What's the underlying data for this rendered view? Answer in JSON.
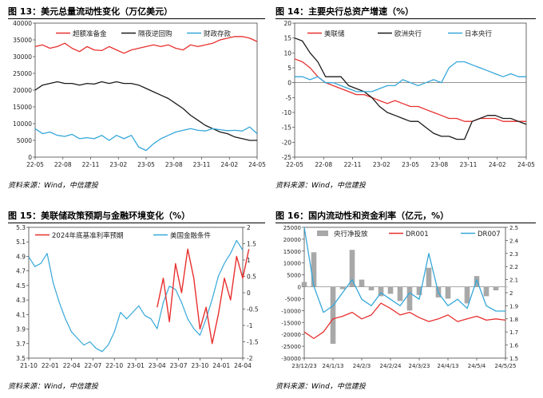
{
  "colors": {
    "red": "#e8302e",
    "black": "#1a1a1a",
    "blue": "#35a7d9",
    "gray": "#a8a8a8"
  },
  "panels": {
    "p13": {
      "title": "图 13：美元总量流动性变化（万亿美元）",
      "source": "资料来源：Wind，中信建投"
    },
    "p14": {
      "title": "图 14：主要央行总资产增速（%）",
      "source": "资料来源：Wind，中信建投"
    },
    "p15": {
      "title": "图 15：美联储政策预期与金融环境变化（%）",
      "source": "资料来源：Wind，中信建投"
    },
    "p16": {
      "title": "图 16：国内流动性和资金利率（亿元，%）",
      "source": "资料来源：Wind，中信建投"
    }
  },
  "chart_data": [
    {
      "id": "p13",
      "type": "line",
      "x_ticks": [
        "22-05",
        "22-08",
        "22-11",
        "23-02",
        "23-05",
        "23-08",
        "23-11",
        "24-02",
        "24-05"
      ],
      "y_ticks": [
        0,
        5000,
        10000,
        15000,
        20000,
        25000,
        30000,
        35000,
        40000
      ],
      "ylim": [
        0,
        40000
      ],
      "series": [
        {
          "name": "超额准备金",
          "color_key": "red",
          "values": [
            33000,
            33500,
            32500,
            33000,
            34000,
            32500,
            31500,
            33000,
            32000,
            31800,
            33000,
            32000,
            31000,
            32000,
            32500,
            33000,
            33500,
            33000,
            33500,
            32500,
            32000,
            33500,
            33000,
            33500,
            34000,
            35000,
            35500,
            36000,
            36000,
            35500,
            34500
          ]
        },
        {
          "name": "隔夜逆回购",
          "color_key": "black",
          "values": [
            20000,
            21500,
            22000,
            22500,
            22000,
            22000,
            21500,
            22000,
            21800,
            22500,
            22000,
            22500,
            22000,
            22000,
            21500,
            20500,
            19500,
            18500,
            17500,
            16000,
            14500,
            12500,
            11000,
            9500,
            8500,
            7500,
            7000,
            6000,
            5500,
            5000,
            5000
          ]
        },
        {
          "name": "财政存款",
          "color_key": "blue",
          "values": [
            8500,
            7000,
            7500,
            6500,
            6200,
            6800,
            5500,
            5800,
            5500,
            6500,
            5000,
            6500,
            5500,
            6500,
            3000,
            2000,
            4000,
            5500,
            6500,
            7500,
            8000,
            8500,
            8000,
            7800,
            8500,
            8200,
            7900,
            8000,
            7800,
            9000,
            7000
          ]
        }
      ]
    },
    {
      "id": "p14",
      "type": "line",
      "x_ticks": [
        "22-05",
        "22-08",
        "22-11",
        "23-02",
        "23-05",
        "23-08",
        "23-11",
        "24-02",
        "24-05"
      ],
      "y_ticks": [
        -25,
        -20,
        -15,
        -10,
        -5,
        0,
        5,
        10,
        15,
        20
      ],
      "ylim": [
        -25,
        20
      ],
      "series": [
        {
          "name": "美联储",
          "color_key": "red",
          "values": [
            8,
            7,
            5,
            2,
            0,
            -1,
            -2,
            -3,
            -4,
            -4,
            -5,
            -6,
            -7,
            -6,
            -7,
            -8,
            -8,
            -9,
            -10,
            -11,
            -12,
            -12,
            -13,
            -13,
            -12,
            -12,
            -12,
            -13,
            -13,
            -13,
            -13
          ]
        },
        {
          "name": "欧洲央行",
          "color_key": "black",
          "values": [
            15,
            14,
            10,
            7,
            2,
            2,
            2,
            -1,
            -2,
            -3,
            -5,
            -8,
            -10,
            -11,
            -12,
            -13,
            -13,
            -15,
            -17,
            -18,
            -18,
            -19,
            -19,
            -13,
            -12,
            -11,
            -11,
            -12,
            -12,
            -13,
            -14
          ]
        },
        {
          "name": "日本央行",
          "color_key": "blue",
          "values": [
            2,
            2,
            1,
            2,
            0,
            0,
            -1,
            -2,
            -3,
            -3,
            -3,
            -2,
            -1,
            -1,
            1,
            0,
            -1,
            0,
            1,
            0,
            5,
            7,
            7,
            6,
            5,
            4,
            3,
            2,
            3,
            2,
            2
          ]
        }
      ]
    },
    {
      "id": "p15",
      "type": "line",
      "x_ticks": [
        "21-10",
        "22-01",
        "22-04",
        "22-07",
        "22-10",
        "23-01",
        "23-04",
        "23-07",
        "23-10",
        "24-01",
        "24-04"
      ],
      "y_ticks_left": [
        3.5,
        3.7,
        3.9,
        4.1,
        4.3,
        4.5,
        4.7,
        4.9,
        5.1,
        5.3
      ],
      "ylim_left": [
        3.5,
        5.3
      ],
      "y_ticks_right": [
        -2,
        -1.5,
        -1,
        -0.5,
        0,
        0.5,
        1,
        1.5,
        2
      ],
      "ylim_right": [
        -2,
        2
      ],
      "series": [
        {
          "name": "2024年底基准利率预期",
          "color_key": "red",
          "axis": "left",
          "x_start_index": 21,
          "values": [
            4.2,
            4.6,
            4.0,
            4.8,
            4.4,
            5.0,
            4.6,
            3.9,
            4.2,
            3.7,
            4.1,
            4.6,
            4.3,
            4.9,
            4.6,
            5.0
          ]
        },
        {
          "name": "美国金融条件",
          "color_key": "blue",
          "axis": "right",
          "values": [
            1.1,
            0.8,
            0.9,
            1.2,
            0.3,
            -0.3,
            -0.8,
            -1.2,
            -1.4,
            -1.6,
            -1.5,
            -1.7,
            -1.8,
            -1.6,
            -1.2,
            -0.6,
            -0.8,
            -0.6,
            -0.4,
            -0.7,
            -0.8,
            -1.1,
            -0.3,
            0.2,
            0.1,
            -0.3,
            -0.8,
            -1.1,
            -1.3,
            -0.8,
            -0.2,
            0.5,
            0.9,
            1.2,
            1.6,
            1.3
          ]
        }
      ]
    },
    {
      "id": "p16",
      "type": "bar",
      "x_ticks": [
        "23/12/23",
        "24/1/13",
        "24/2/3",
        "24/2/24",
        "24/3/23",
        "24/4/13",
        "24/5/4",
        "24/5/25"
      ],
      "y_ticks_left": [
        -30000,
        -25000,
        -20000,
        -15000,
        -10000,
        -5000,
        0,
        5000,
        10000,
        15000,
        20000,
        25000
      ],
      "ylim_left": [
        -30000,
        25000
      ],
      "y_ticks_right": [
        1.5,
        1.6,
        1.7,
        1.8,
        1.9,
        2.0,
        2.1,
        2.2,
        2.3,
        2.4,
        2.5
      ],
      "ylim_right": [
        1.5,
        2.5
      ],
      "series": [
        {
          "name": "央行净投放",
          "color_key": "gray",
          "type": "bar",
          "axis": "left",
          "values": [
            2000,
            14500,
            0,
            -24000,
            -1000,
            15500,
            3000,
            -1500,
            -4000,
            -3000,
            -6000,
            -10000,
            -3500,
            8000,
            -4500,
            -5000,
            0,
            -7000,
            4500,
            -4000,
            -1500,
            0
          ]
        },
        {
          "name": "DR001",
          "color_key": "red",
          "type": "line",
          "axis": "right",
          "values": [
            1.7,
            1.65,
            1.7,
            1.8,
            1.82,
            1.85,
            1.8,
            1.83,
            1.92,
            1.88,
            1.83,
            1.85,
            1.81,
            1.78,
            1.8,
            1.83,
            1.78,
            1.8,
            1.82,
            1.79,
            1.8,
            1.79
          ]
        },
        {
          "name": "DR007",
          "color_key": "blue",
          "type": "line",
          "axis": "right",
          "values": [
            2.5,
            2.05,
            1.85,
            1.9,
            2.0,
            2.1,
            1.95,
            1.9,
            2.0,
            1.95,
            1.9,
            2.0,
            1.95,
            2.3,
            2.0,
            1.9,
            1.95,
            1.88,
            2.1,
            1.9,
            1.86,
            1.86
          ]
        }
      ]
    }
  ]
}
